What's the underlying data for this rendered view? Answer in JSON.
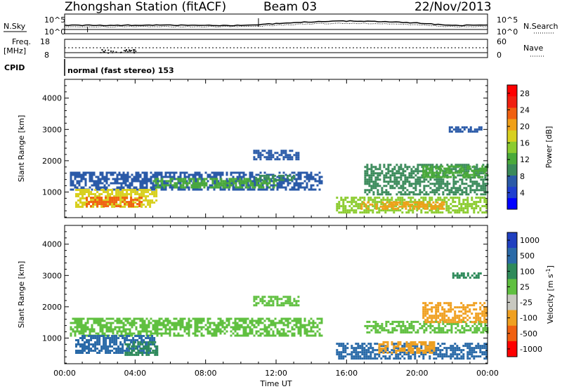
{
  "header": {
    "station": "Zhongshan Station (fitACF)",
    "beam": "Beam 03",
    "date": "22/Nov/2013"
  },
  "panel_labels": {
    "nsky": "N.Sky",
    "nsearch": "N.Search",
    "freq": "Freq.",
    "freq_unit": "[MHz]",
    "nave": "Nave",
    "cpid": "CPID",
    "cpid_value": "normal (fast stereo) 153"
  },
  "noise_axis": {
    "left_ticks": [
      "10^5",
      "10^0"
    ],
    "right_ticks": [
      "10^5",
      "10^0"
    ]
  },
  "freq_axis": {
    "left_ticks": [
      "18",
      "8"
    ],
    "right_ticks": [
      "60",
      "0"
    ]
  },
  "chart_data": [
    {
      "type": "heatmap",
      "name": "power",
      "ylabel": "Slant Range [km]",
      "ylim": [
        180,
        4600
      ],
      "yticks": [
        1000,
        2000,
        3000,
        4000
      ],
      "xlim": [
        0,
        24
      ],
      "colorbar": {
        "label": "Power [dB]",
        "range": [
          0,
          30
        ],
        "ticks": [
          4,
          8,
          12,
          16,
          20,
          24,
          28
        ],
        "colors": [
          "#0000ff",
          "#1f3fd0",
          "#2a5aa8",
          "#3a8a5a",
          "#4aaa3a",
          "#8ccc30",
          "#d8d020",
          "#f0a018",
          "#f06010",
          "#f02010",
          "#ff0000"
        ]
      },
      "regions": [
        {
          "t0": 0.3,
          "t1": 14.6,
          "r0": 1050,
          "r1": 1650,
          "level": 7
        },
        {
          "t0": 0.6,
          "t1": 5.2,
          "r0": 500,
          "r1": 1100,
          "level": 17
        },
        {
          "t0": 1.2,
          "t1": 4.4,
          "r0": 550,
          "r1": 850,
          "level": 24
        },
        {
          "t0": 5.0,
          "t1": 12.0,
          "r0": 1150,
          "r1": 1450,
          "level": 12
        },
        {
          "t0": 10.7,
          "t1": 13.3,
          "r0": 2050,
          "r1": 2350,
          "level": 7
        },
        {
          "t0": 10.8,
          "t1": 13.0,
          "r0": 1350,
          "r1": 1550,
          "level": 9
        },
        {
          "t0": 15.4,
          "t1": 24.0,
          "r0": 350,
          "r1": 850,
          "level": 15
        },
        {
          "t0": 16.8,
          "t1": 21.5,
          "r0": 450,
          "r1": 700,
          "level": 22
        },
        {
          "t0": 17.0,
          "t1": 24.0,
          "r0": 900,
          "r1": 1900,
          "level": 9
        },
        {
          "t0": 20.3,
          "t1": 24.0,
          "r0": 1450,
          "r1": 1850,
          "level": 13
        },
        {
          "t0": 21.8,
          "t1": 23.6,
          "r0": 2950,
          "r1": 3100,
          "level": 6
        }
      ]
    },
    {
      "type": "heatmap",
      "name": "velocity",
      "ylabel": "Slant Range [km]",
      "ylim": [
        180,
        4600
      ],
      "yticks": [
        1000,
        2000,
        3000,
        4000
      ],
      "xlim": [
        0,
        24
      ],
      "xticks": [
        "00:00",
        "04:00",
        "08:00",
        "12:00",
        "16:00",
        "20:00",
        "00:00"
      ],
      "xlabel": "Time UT",
      "colorbar": {
        "label": "Velocity [m s^-1]",
        "ticks": [
          "1000",
          "500",
          "100",
          "25",
          "-25",
          "-100",
          "-500",
          "-1000"
        ],
        "colors": [
          "#2040c0",
          "#2a6aa8",
          "#2e8a5a",
          "#60c040",
          "#c8c8c0",
          "#f0a020",
          "#f06010",
          "#ff0000"
        ]
      },
      "regions": [
        {
          "t0": 0.3,
          "t1": 14.6,
          "r0": 1050,
          "r1": 1650,
          "class": "25"
        },
        {
          "t0": 0.6,
          "t1": 5.2,
          "r0": 500,
          "r1": 1100,
          "class": "500"
        },
        {
          "t0": 3.4,
          "t1": 5.2,
          "r0": 450,
          "r1": 900,
          "class": "100"
        },
        {
          "t0": 10.7,
          "t1": 13.3,
          "r0": 2050,
          "r1": 2350,
          "class": "25"
        },
        {
          "t0": 15.4,
          "t1": 24.0,
          "r0": 350,
          "r1": 850,
          "class": "500"
        },
        {
          "t0": 17.8,
          "t1": 21.0,
          "r0": 500,
          "r1": 900,
          "class": "-100"
        },
        {
          "t0": 17.0,
          "t1": 24.0,
          "r0": 1150,
          "r1": 1550,
          "class": "25"
        },
        {
          "t0": 20.3,
          "t1": 24.0,
          "r0": 1500,
          "r1": 2150,
          "class": "-100"
        },
        {
          "t0": 22.0,
          "t1": 23.6,
          "r0": 2950,
          "r1": 3100,
          "class": "100"
        }
      ]
    }
  ]
}
